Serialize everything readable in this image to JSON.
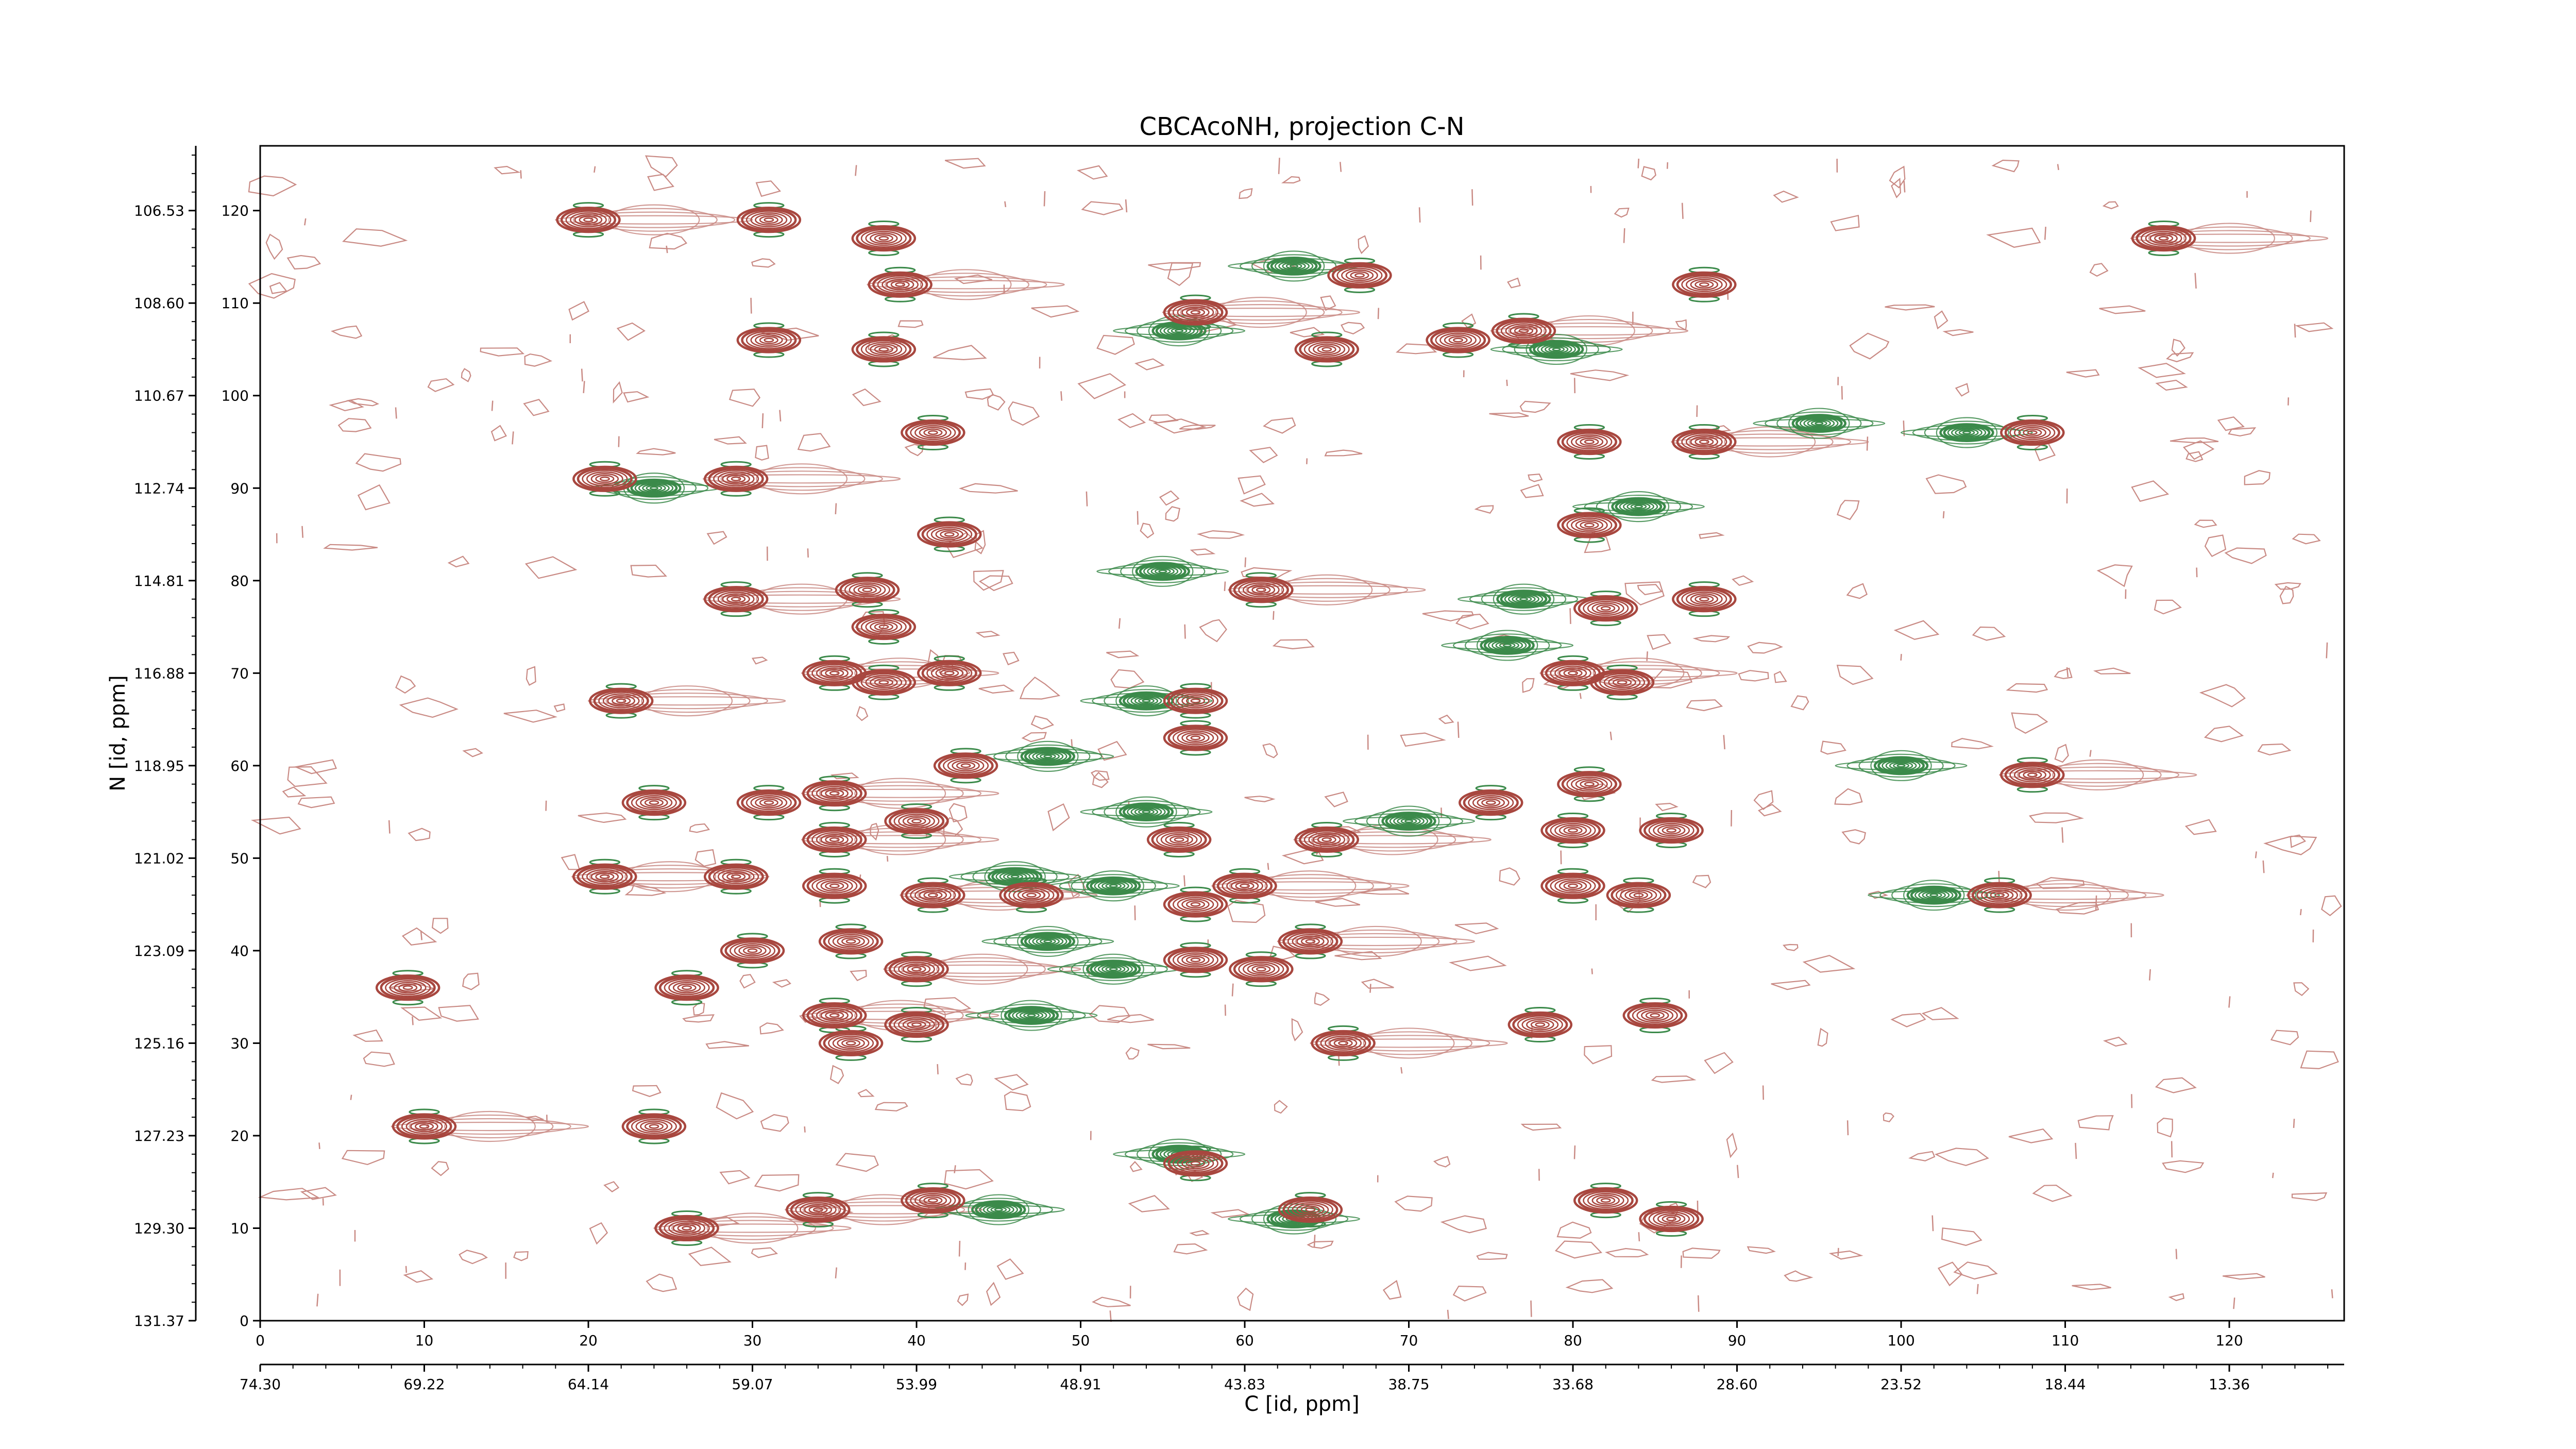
{
  "chart_data": {
    "type": "contour",
    "title": "CBCAcoNH, projection C-N",
    "xlabel": "C [id, ppm]",
    "ylabel": "N [id, ppm]",
    "xlim": [
      0,
      127
    ],
    "ylim": [
      0,
      127
    ],
    "x_index_ticks": [
      0,
      10,
      20,
      30,
      40,
      50,
      60,
      70,
      80,
      90,
      100,
      110,
      120
    ],
    "x_ppm_tick_labels": [
      "74.30",
      "69.22",
      "64.14",
      "59.07",
      "53.99",
      "48.91",
      "43.83",
      "38.75",
      "33.68",
      "28.60",
      "23.52",
      "18.44",
      "13.36"
    ],
    "y_index_ticks": [
      0,
      10,
      20,
      30,
      40,
      50,
      60,
      70,
      80,
      90,
      100,
      110,
      120
    ],
    "y_ppm_tick_labels": [
      "131.37",
      "129.30",
      "127.23",
      "125.16",
      "123.09",
      "121.02",
      "118.95",
      "116.88",
      "114.81",
      "112.74",
      "110.67",
      "108.60",
      "106.53"
    ],
    "colors": {
      "positive": "#a8473f",
      "negative": "#3b8a4a",
      "noise": "#c98a84",
      "axis": "#000000"
    },
    "series": [
      {
        "sign": "positive",
        "peaks": [
          {
            "x": 20,
            "y": 119
          },
          {
            "x": 31,
            "y": 119
          },
          {
            "x": 38,
            "y": 117
          },
          {
            "x": 39,
            "y": 112
          },
          {
            "x": 67,
            "y": 113
          },
          {
            "x": 88,
            "y": 112
          },
          {
            "x": 116,
            "y": 117
          },
          {
            "x": 31,
            "y": 106
          },
          {
            "x": 38,
            "y": 105
          },
          {
            "x": 57,
            "y": 109
          },
          {
            "x": 65,
            "y": 105
          },
          {
            "x": 73,
            "y": 106
          },
          {
            "x": 77,
            "y": 107
          },
          {
            "x": 41,
            "y": 96
          },
          {
            "x": 81,
            "y": 95
          },
          {
            "x": 88,
            "y": 95
          },
          {
            "x": 108,
            "y": 96
          },
          {
            "x": 21,
            "y": 91
          },
          {
            "x": 29,
            "y": 91
          },
          {
            "x": 42,
            "y": 85
          },
          {
            "x": 81,
            "y": 86
          },
          {
            "x": 29,
            "y": 78
          },
          {
            "x": 37,
            "y": 79
          },
          {
            "x": 38,
            "y": 75
          },
          {
            "x": 61,
            "y": 79
          },
          {
            "x": 82,
            "y": 77
          },
          {
            "x": 88,
            "y": 78
          },
          {
            "x": 35,
            "y": 70
          },
          {
            "x": 38,
            "y": 69
          },
          {
            "x": 42,
            "y": 70
          },
          {
            "x": 22,
            "y": 67
          },
          {
            "x": 57,
            "y": 67
          },
          {
            "x": 57,
            "y": 63
          },
          {
            "x": 80,
            "y": 70
          },
          {
            "x": 83,
            "y": 69
          },
          {
            "x": 43,
            "y": 60
          },
          {
            "x": 108,
            "y": 59
          },
          {
            "x": 24,
            "y": 56
          },
          {
            "x": 31,
            "y": 56
          },
          {
            "x": 35,
            "y": 57
          },
          {
            "x": 75,
            "y": 56
          },
          {
            "x": 81,
            "y": 58
          },
          {
            "x": 35,
            "y": 52
          },
          {
            "x": 40,
            "y": 54
          },
          {
            "x": 56,
            "y": 52
          },
          {
            "x": 65,
            "y": 52
          },
          {
            "x": 80,
            "y": 53
          },
          {
            "x": 86,
            "y": 53
          },
          {
            "x": 21,
            "y": 48
          },
          {
            "x": 29,
            "y": 48
          },
          {
            "x": 35,
            "y": 47
          },
          {
            "x": 41,
            "y": 46
          },
          {
            "x": 47,
            "y": 46
          },
          {
            "x": 57,
            "y": 45
          },
          {
            "x": 60,
            "y": 47
          },
          {
            "x": 80,
            "y": 47
          },
          {
            "x": 84,
            "y": 46
          },
          {
            "x": 106,
            "y": 46
          },
          {
            "x": 30,
            "y": 40
          },
          {
            "x": 36,
            "y": 41
          },
          {
            "x": 40,
            "y": 38
          },
          {
            "x": 57,
            "y": 39
          },
          {
            "x": 61,
            "y": 38
          },
          {
            "x": 64,
            "y": 41
          },
          {
            "x": 9,
            "y": 36
          },
          {
            "x": 26,
            "y": 36
          },
          {
            "x": 35,
            "y": 33
          },
          {
            "x": 40,
            "y": 32
          },
          {
            "x": 36,
            "y": 30
          },
          {
            "x": 66,
            "y": 30
          },
          {
            "x": 78,
            "y": 32
          },
          {
            "x": 85,
            "y": 33
          },
          {
            "x": 10,
            "y": 21
          },
          {
            "x": 24,
            "y": 21
          },
          {
            "x": 57,
            "y": 17
          },
          {
            "x": 34,
            "y": 12
          },
          {
            "x": 41,
            "y": 13
          },
          {
            "x": 64,
            "y": 12
          },
          {
            "x": 26,
            "y": 10
          },
          {
            "x": 82,
            "y": 13
          },
          {
            "x": 86,
            "y": 11
          }
        ]
      },
      {
        "sign": "negative",
        "peaks": [
          {
            "x": 63,
            "y": 114
          },
          {
            "x": 56,
            "y": 107
          },
          {
            "x": 79,
            "y": 105
          },
          {
            "x": 95,
            "y": 97
          },
          {
            "x": 104,
            "y": 96
          },
          {
            "x": 24,
            "y": 90
          },
          {
            "x": 84,
            "y": 88
          },
          {
            "x": 55,
            "y": 81
          },
          {
            "x": 77,
            "y": 78
          },
          {
            "x": 76,
            "y": 73
          },
          {
            "x": 54,
            "y": 67
          },
          {
            "x": 48,
            "y": 61
          },
          {
            "x": 100,
            "y": 60
          },
          {
            "x": 54,
            "y": 55
          },
          {
            "x": 70,
            "y": 54
          },
          {
            "x": 46,
            "y": 48
          },
          {
            "x": 52,
            "y": 47
          },
          {
            "x": 102,
            "y": 46
          },
          {
            "x": 48,
            "y": 41
          },
          {
            "x": 52,
            "y": 38
          },
          {
            "x": 47,
            "y": 33
          },
          {
            "x": 56,
            "y": 18
          },
          {
            "x": 45,
            "y": 12
          },
          {
            "x": 63,
            "y": 11
          }
        ]
      }
    ]
  }
}
